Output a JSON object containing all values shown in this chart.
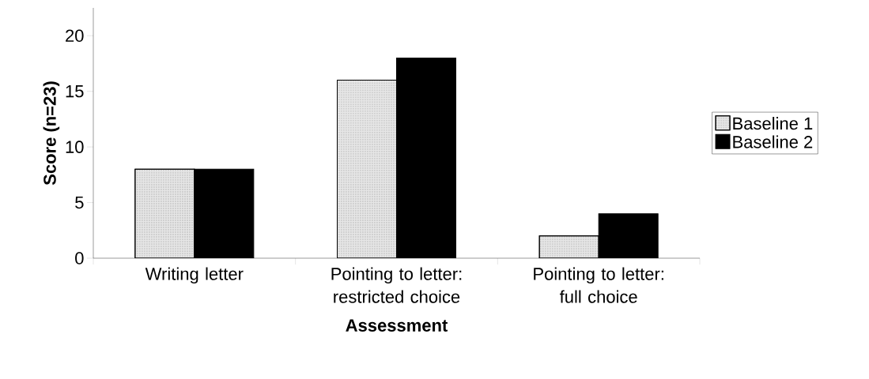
{
  "chart_data": {
    "type": "bar",
    "xlabel": "Assessment",
    "ylabel": "Score (n=23)",
    "categories": [
      "Writing letter",
      "Pointing to letter: restricted choice",
      "Pointing to letter: full choice"
    ],
    "series": [
      {
        "name": "Baseline 1",
        "color": "#e6e6e6",
        "values": [
          8,
          16,
          2
        ]
      },
      {
        "name": "Baseline 2",
        "color": "#000000",
        "values": [
          8,
          18,
          4
        ]
      }
    ],
    "ylim": [
      0,
      22.5
    ],
    "yticks": [
      0,
      5,
      10,
      15,
      20
    ],
    "grid": false,
    "legend": "right"
  }
}
